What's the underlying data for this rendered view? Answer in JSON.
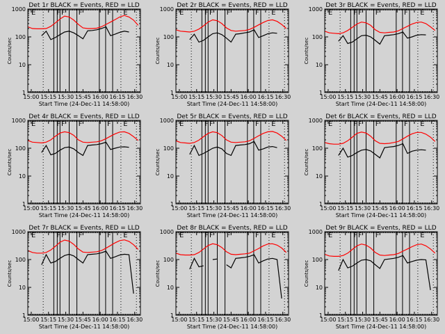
{
  "chart_data": {
    "type": "line",
    "layout": "3x3 grid",
    "background": "#d3d3d3",
    "colors": {
      "events": "#000000",
      "lld": "#ff0000"
    },
    "ylabel": "Counts/sec",
    "xlabel": "Start Time (24-Dec-11 14:58:00)",
    "yscale": "log",
    "ylim": [
      1,
      1000
    ],
    "yticks": [
      1,
      10,
      100,
      1000
    ],
    "ytick_labels": [
      "1",
      "10",
      "100",
      "1000"
    ],
    "xlim_minutes_after_1457": [
      0,
      98
    ],
    "xticks": [
      "15:00",
      "15:15",
      "15:30",
      "15:45",
      "16:00",
      "16:15",
      "16:30"
    ],
    "xtick_minutes": [
      3,
      18,
      33,
      48,
      63,
      78,
      93
    ],
    "solid_lines_minutes": [
      22.6,
      25.6,
      28,
      36,
      42.7,
      62.2,
      67.7,
      73.8
    ],
    "dotted_lines_minutes": [
      13.4,
      81,
      94.5
    ],
    "markers": [
      {
        "label": "E",
        "minute": 3
      },
      {
        "label": "F",
        "minute": 25
      },
      {
        "label": "F",
        "minute": 29
      },
      {
        "label": "F",
        "minute": 44
      },
      {
        "label": "F",
        "minute": 69
      },
      {
        "label": "E",
        "minute": 83
      }
    ],
    "x": [
      0,
      4,
      8,
      12,
      16,
      20,
      24,
      28,
      32,
      36,
      40,
      44,
      48,
      52,
      56,
      60,
      64,
      68,
      72,
      76,
      80,
      84,
      88,
      92,
      96
    ],
    "panels": [
      {
        "title": "Det 1r BLACK = Events, RED = LLD",
        "lld": [
          230,
          200,
          195,
          195,
          200,
          240,
          320,
          440,
          560,
          520,
          400,
          280,
          210,
          200,
          200,
          205,
          230,
          280,
          340,
          420,
          520,
          590,
          520,
          400,
          260
        ],
        "events_start": 9,
        "events_end": 86,
        "events": [
          null,
          null,
          null,
          110,
          160,
          80,
          95,
          120,
          150,
          160,
          140,
          110,
          85,
          165,
          170,
          180,
          200,
          230,
          110,
          125,
          145,
          160,
          150,
          null,
          null
        ]
      },
      {
        "title": "Det 2r BLACK = Events, RED = LLD",
        "lld": [
          180,
          160,
          155,
          150,
          160,
          190,
          250,
          340,
          410,
          380,
          300,
          210,
          170,
          160,
          165,
          170,
          185,
          220,
          270,
          330,
          390,
          410,
          360,
          280,
          200
        ],
        "events_start": 9,
        "events_end": 86,
        "events": [
          null,
          null,
          null,
          80,
          125,
          65,
          75,
          100,
          130,
          140,
          120,
          90,
          65,
          125,
          130,
          140,
          150,
          180,
          95,
          110,
          130,
          140,
          135,
          null,
          null
        ]
      },
      {
        "title": "Det 3r BLACK = Events, RED = LLD",
        "lld": [
          160,
          140,
          135,
          130,
          140,
          170,
          220,
          290,
          340,
          320,
          260,
          180,
          145,
          140,
          145,
          150,
          165,
          200,
          240,
          290,
          330,
          340,
          300,
          230,
          170
        ],
        "events_start": 9,
        "events_end": 86,
        "events": [
          null,
          null,
          null,
          70,
          110,
          58,
          65,
          85,
          110,
          115,
          100,
          75,
          55,
          110,
          115,
          120,
          130,
          150,
          90,
          100,
          115,
          120,
          118,
          null,
          null
        ]
      },
      {
        "title": "Det 4r BLACK = Events, RED = LLD",
        "lld": [
          190,
          165,
          160,
          155,
          165,
          200,
          270,
          350,
          390,
          360,
          290,
          200,
          165,
          160,
          165,
          170,
          185,
          220,
          270,
          330,
          380,
          390,
          340,
          260,
          190
        ],
        "events_start": 9,
        "events_end": 86,
        "events": [
          null,
          null,
          null,
          70,
          125,
          58,
          65,
          85,
          105,
          110,
          95,
          70,
          55,
          125,
          130,
          135,
          145,
          165,
          90,
          100,
          110,
          112,
          108,
          null,
          null
        ]
      },
      {
        "title": "Det 5r BLACK = Events, RED = LLD",
        "lld": [
          185,
          160,
          155,
          150,
          160,
          195,
          260,
          340,
          390,
          360,
          285,
          200,
          165,
          160,
          165,
          170,
          185,
          225,
          280,
          340,
          390,
          400,
          350,
          270,
          190
        ],
        "events_start": 9,
        "events_end": 86,
        "events": [
          null,
          null,
          null,
          60,
          125,
          55,
          65,
          80,
          100,
          110,
          95,
          65,
          55,
          125,
          130,
          135,
          145,
          175,
          85,
          95,
          110,
          115,
          105,
          null,
          null
        ]
      },
      {
        "title": "Det 6r BLACK = Events, RED = LLD",
        "lld": [
          160,
          145,
          140,
          140,
          150,
          185,
          250,
          340,
          380,
          350,
          270,
          185,
          150,
          145,
          150,
          160,
          175,
          215,
          270,
          330,
          370,
          370,
          320,
          250,
          175
        ],
        "events_start": 9,
        "events_end": 86,
        "events": [
          null,
          null,
          null,
          55,
          100,
          48,
          55,
          70,
          85,
          90,
          80,
          60,
          45,
          105,
          110,
          115,
          125,
          145,
          65,
          78,
          85,
          88,
          85,
          null,
          null
        ]
      },
      {
        "title": "Det 7r BLACK = Events, RED = LLD",
        "lld": [
          210,
          180,
          170,
          170,
          180,
          220,
          300,
          420,
          500,
          460,
          350,
          240,
          185,
          180,
          185,
          190,
          210,
          255,
          320,
          400,
          480,
          510,
          450,
          340,
          230
        ],
        "events_start": 9,
        "events_end": 86,
        "events": [
          null,
          null,
          null,
          65,
          150,
          75,
          85,
          110,
          140,
          155,
          135,
          100,
          75,
          150,
          155,
          160,
          175,
          200,
          110,
          125,
          145,
          155,
          150,
          6,
          null
        ]
      },
      {
        "title": "Det 8r BLACK = Events, RED = LLD",
        "lld": [
          170,
          150,
          145,
          145,
          150,
          180,
          240,
          320,
          370,
          340,
          270,
          190,
          155,
          150,
          155,
          160,
          170,
          205,
          250,
          310,
          360,
          370,
          330,
          260,
          180
        ],
        "events_start": 9,
        "events_end": 86,
        "events": [
          null,
          null,
          null,
          45,
          110,
          55,
          60,
          null,
          100,
          105,
          null,
          65,
          50,
          110,
          115,
          120,
          130,
          150,
          75,
          90,
          105,
          110,
          100,
          4,
          null
        ]
      },
      {
        "title": "Det 9r BLACK = Events, RED = LLD",
        "lld": [
          155,
          135,
          130,
          130,
          140,
          170,
          230,
          310,
          360,
          330,
          260,
          180,
          145,
          140,
          145,
          150,
          165,
          200,
          240,
          290,
          340,
          360,
          310,
          240,
          170
        ],
        "events_start": 9,
        "events_end": 86,
        "events": [
          null,
          null,
          null,
          40,
          100,
          50,
          58,
          75,
          95,
          100,
          90,
          65,
          48,
          100,
          105,
          110,
          120,
          140,
          75,
          85,
          95,
          100,
          98,
          8,
          null
        ]
      }
    ]
  }
}
